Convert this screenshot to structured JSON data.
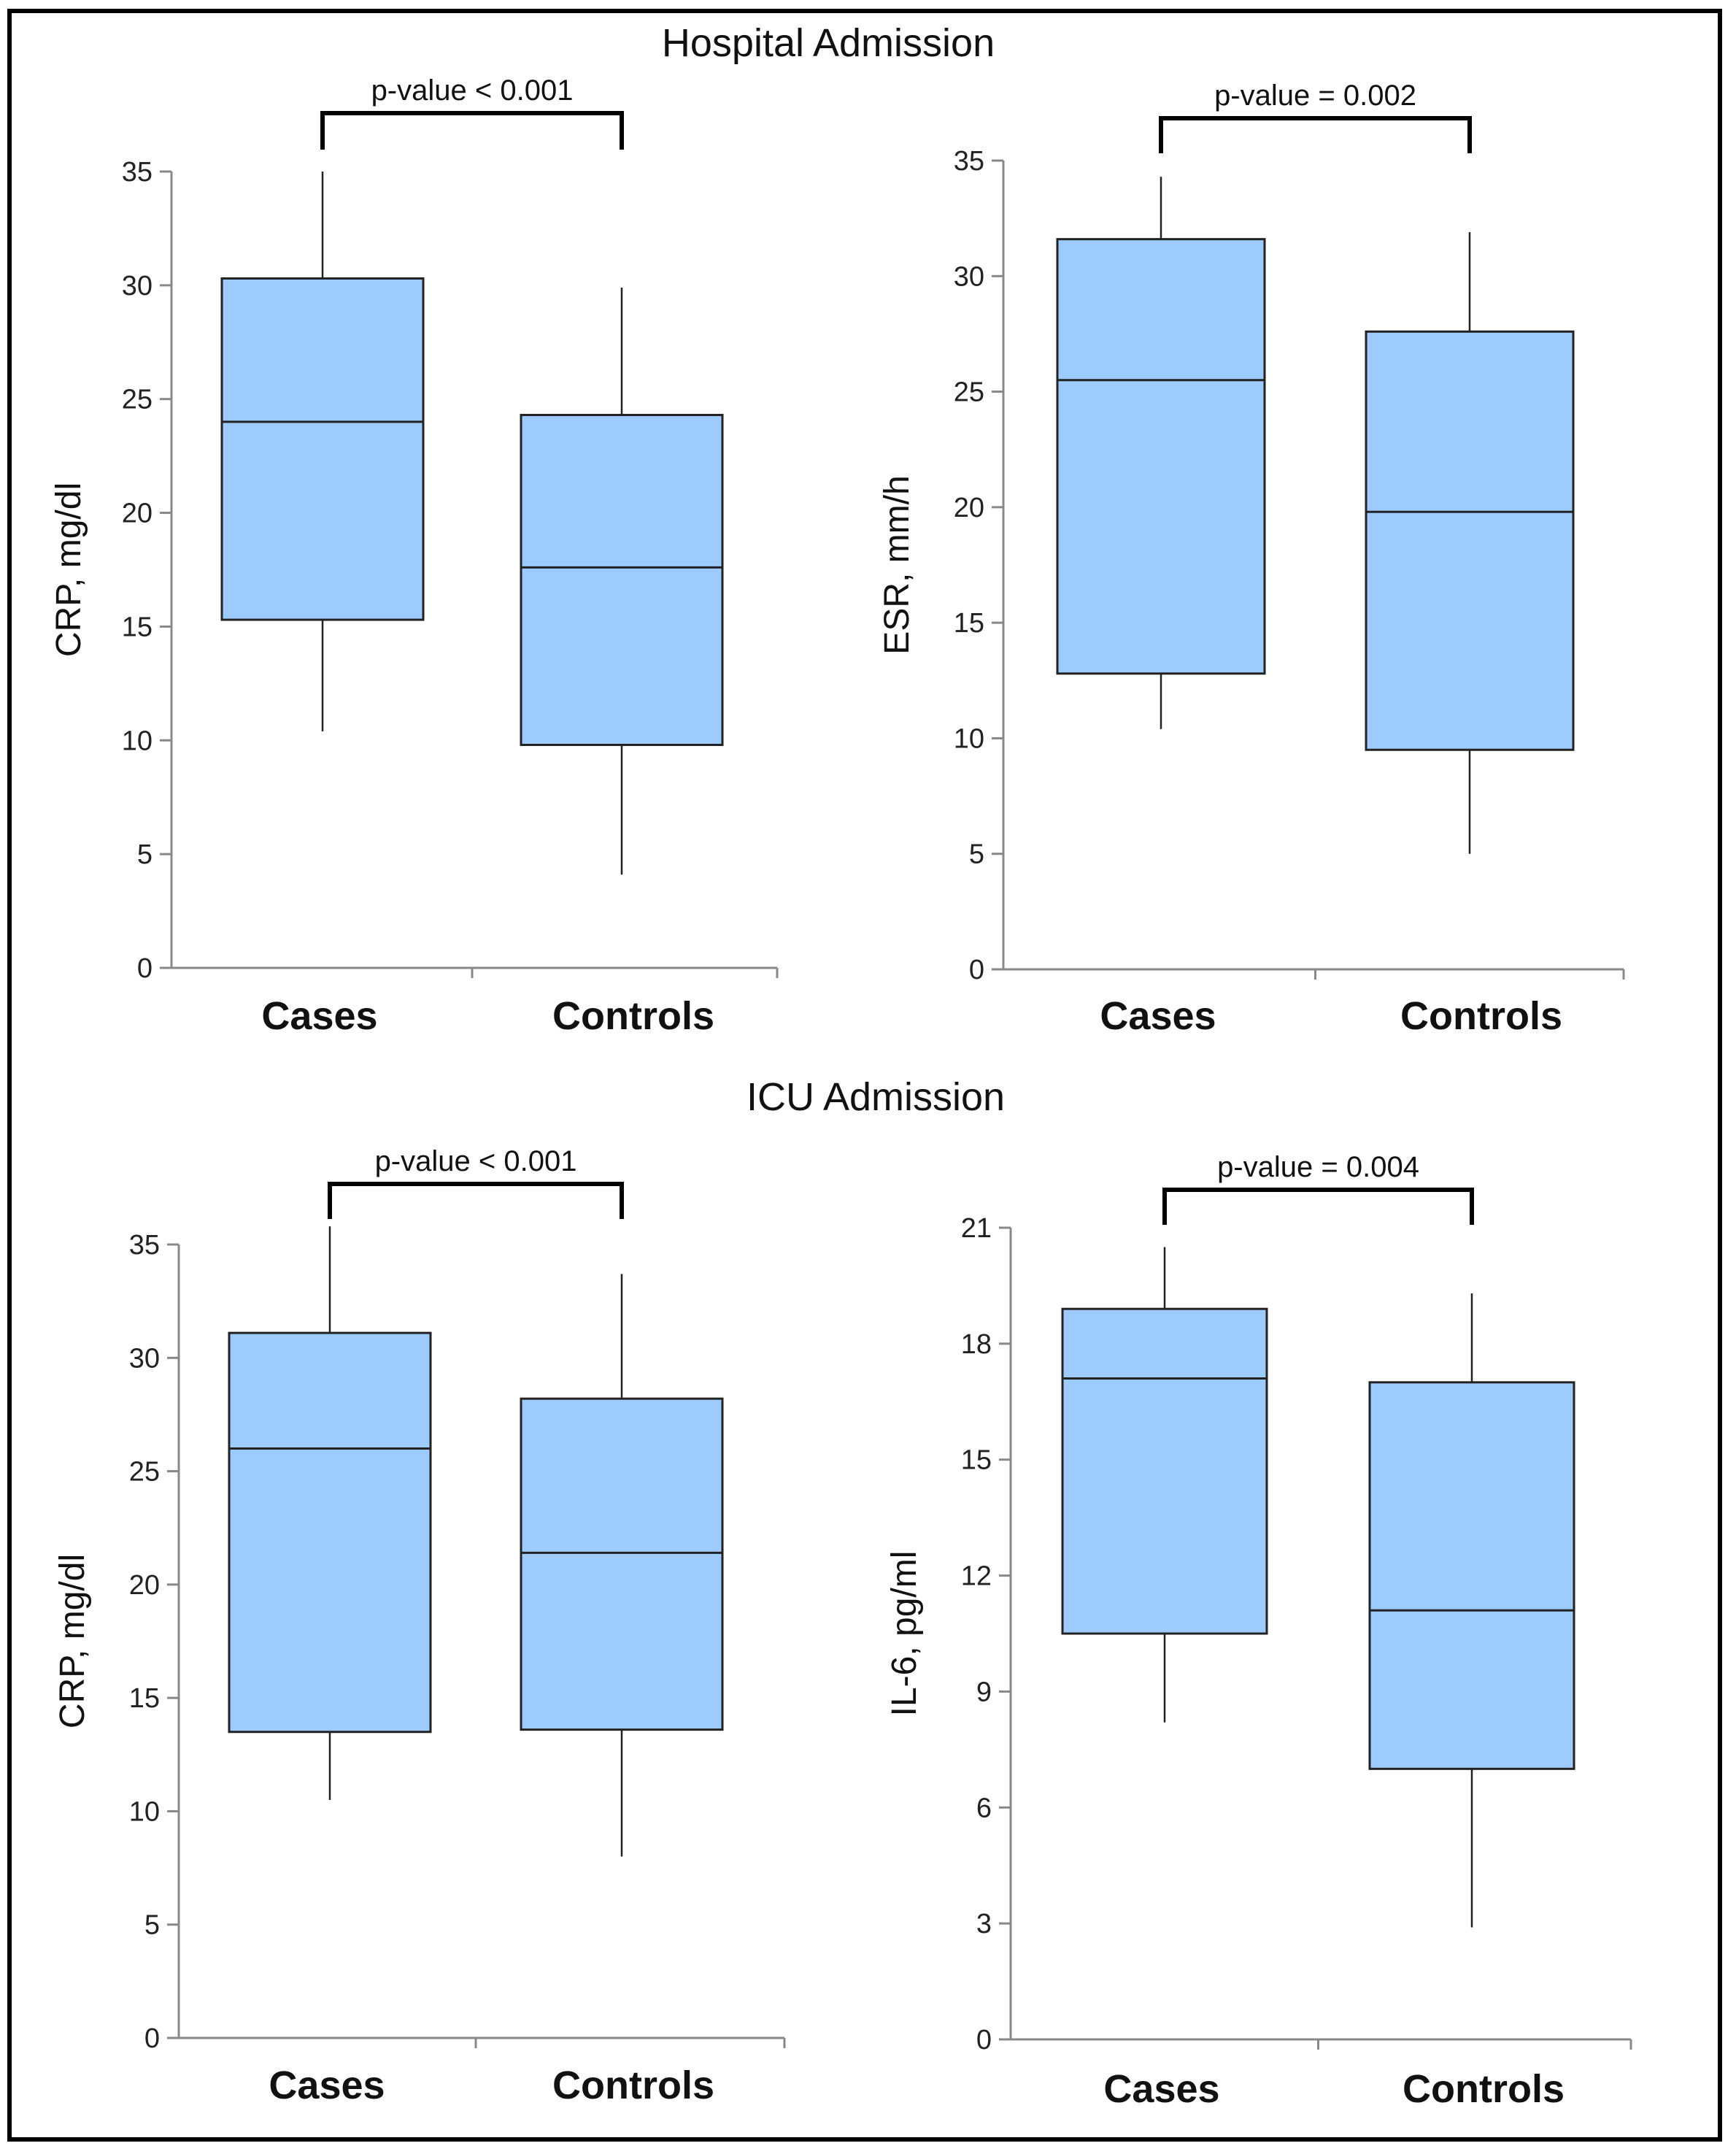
{
  "sections": {
    "hospital": "Hospital Admission",
    "icu": "ICU Admission"
  },
  "colors": {
    "box_fill": "#9DCBFF",
    "box_stroke": "#222222",
    "axis": "#888888",
    "bracket": "#000000"
  },
  "chart_data": [
    {
      "type": "box",
      "section": "Hospital Admission",
      "ylabel": "CRP, mg/dl",
      "ylim": [
        0,
        35
      ],
      "yticks": [
        0,
        5,
        10,
        15,
        20,
        25,
        30,
        35
      ],
      "categories": [
        "Cases",
        "Controls"
      ],
      "boxes": [
        {
          "category": "Cases",
          "min": 10.4,
          "q1": 15.3,
          "median": 24.0,
          "q3": 30.3,
          "max": 35.0
        },
        {
          "category": "Controls",
          "min": 4.1,
          "q1": 9.8,
          "median": 17.6,
          "q3": 24.3,
          "max": 29.9
        }
      ],
      "annotation": "p-value < 0.001"
    },
    {
      "type": "box",
      "section": "Hospital Admission",
      "ylabel": "ESR, mm/h",
      "ylim": [
        0,
        35
      ],
      "yticks": [
        0,
        5,
        10,
        15,
        20,
        25,
        30,
        35
      ],
      "categories": [
        "Cases",
        "Controls"
      ],
      "boxes": [
        {
          "category": "Cases",
          "min": 10.4,
          "q1": 12.8,
          "median": 25.5,
          "q3": 31.6,
          "max": 34.3
        },
        {
          "category": "Controls",
          "min": 5.0,
          "q1": 9.5,
          "median": 19.8,
          "q3": 27.6,
          "max": 31.9
        }
      ],
      "annotation": "p-value = 0.002"
    },
    {
      "type": "box",
      "section": "ICU Admission",
      "ylabel": "CRP, mg/dl",
      "ylim": [
        0,
        35
      ],
      "yticks": [
        0,
        5,
        10,
        15,
        20,
        25,
        30,
        35
      ],
      "categories": [
        "Cases",
        "Controls"
      ],
      "boxes": [
        {
          "category": "Cases",
          "min": 10.5,
          "q1": 13.5,
          "median": 26.0,
          "q3": 31.1,
          "max": 35.8
        },
        {
          "category": "Controls",
          "min": 8.0,
          "q1": 13.6,
          "median": 21.4,
          "q3": 28.2,
          "max": 33.7
        }
      ],
      "annotation": "p-value < 0.001"
    },
    {
      "type": "box",
      "section": "ICU Admission",
      "ylabel": "IL-6, pg/ml",
      "ylim": [
        0,
        21
      ],
      "yticks": [
        0,
        3,
        6,
        9,
        12,
        15,
        18,
        21
      ],
      "categories": [
        "Cases",
        "Controls"
      ],
      "boxes": [
        {
          "category": "Cases",
          "min": 8.2,
          "q1": 10.5,
          "median": 17.1,
          "q3": 18.9,
          "max": 20.5
        },
        {
          "category": "Controls",
          "min": 2.9,
          "q1": 7.0,
          "median": 11.1,
          "q3": 17.0,
          "max": 19.3
        }
      ],
      "annotation": "p-value = 0.004"
    }
  ]
}
